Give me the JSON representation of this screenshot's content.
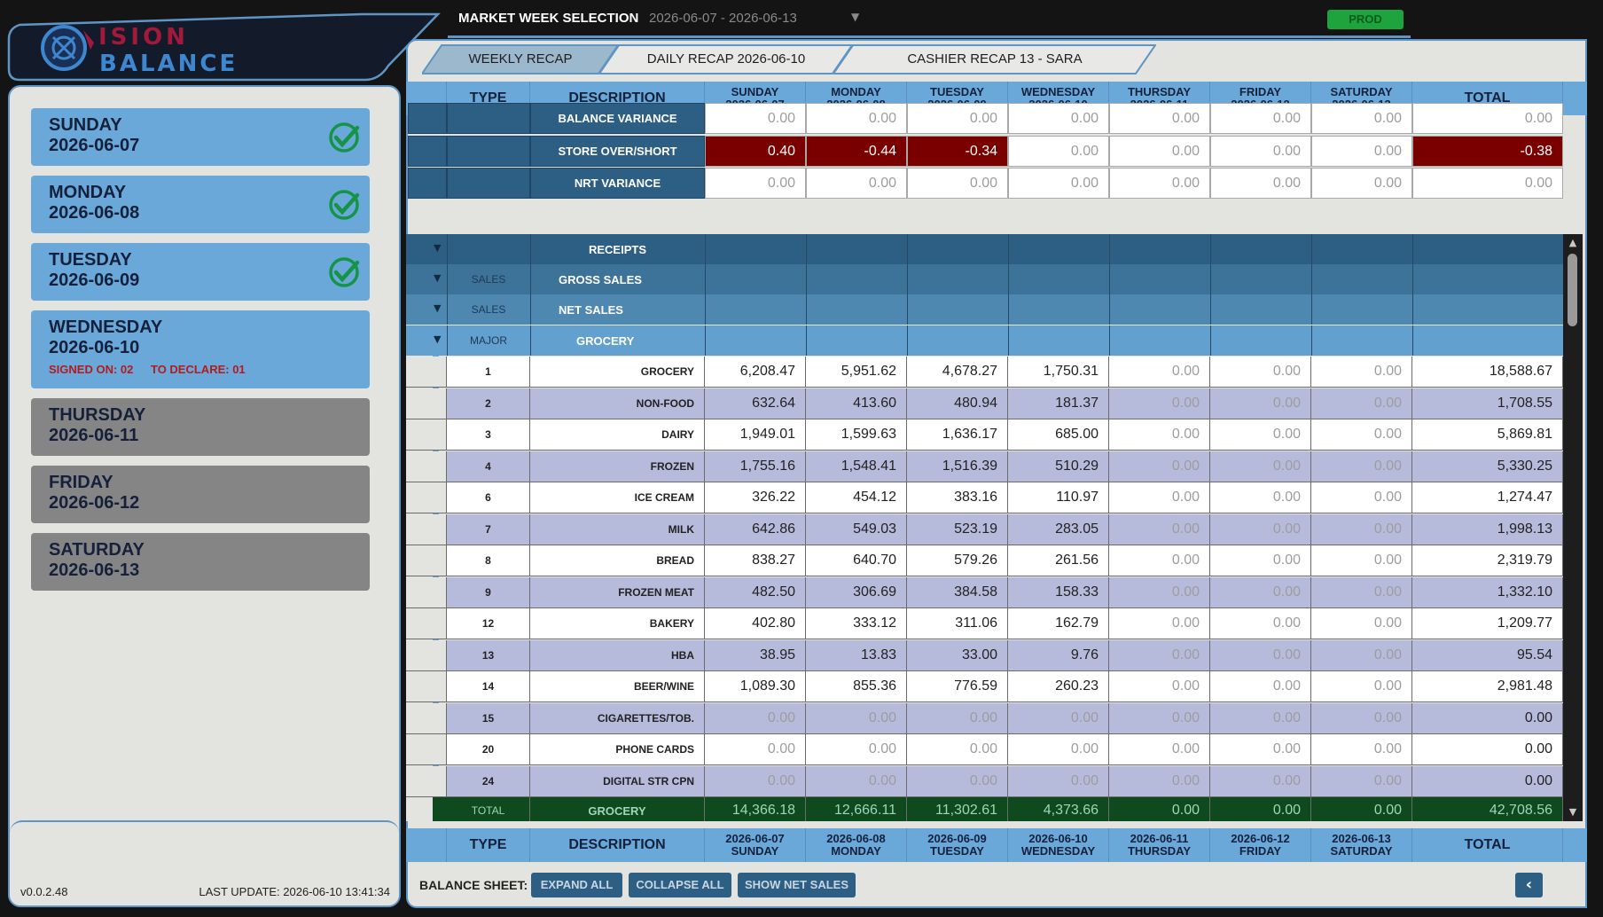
{
  "logo": {
    "line1": "ISION",
    "line2": "BALANCE"
  },
  "topbar": {
    "week_label": "MARKET WEEK SELECTION",
    "week_value": "2026-06-07 - 2026-06-13",
    "env_badge": "PROD"
  },
  "tabs": [
    {
      "label": "WEEKLY RECAP"
    },
    {
      "label": "DAILY RECAP 2026-06-10"
    },
    {
      "label": "CASHIER RECAP 13 - SARA"
    }
  ],
  "sidebar": {
    "days": [
      {
        "name": "SUNDAY",
        "date": "2026-06-07",
        "status": "done"
      },
      {
        "name": "MONDAY",
        "date": "2026-06-08",
        "status": "done"
      },
      {
        "name": "TUESDAY",
        "date": "2026-06-09",
        "status": "done"
      },
      {
        "name": "WEDNESDAY",
        "date": "2026-06-10",
        "status": "current",
        "signed_on": "SIGNED ON: 02",
        "to_declare": "TO DECLARE: 01"
      },
      {
        "name": "THURSDAY",
        "date": "2026-06-11",
        "status": "future"
      },
      {
        "name": "FRIDAY",
        "date": "2026-06-12",
        "status": "future"
      },
      {
        "name": "SATURDAY",
        "date": "2026-06-13",
        "status": "future"
      }
    ],
    "version": "v0.0.2.48",
    "last_update": "LAST UPDATE: 2026-06-10 13:41:34"
  },
  "header": {
    "type": "TYPE",
    "description": "DESCRIPTION",
    "days": [
      {
        "name": "SUNDAY",
        "date": "2026-06-07"
      },
      {
        "name": "MONDAY",
        "date": "2026-06-08"
      },
      {
        "name": "TUESDAY",
        "date": "2026-06-09"
      },
      {
        "name": "WEDNESDAY",
        "date": "2026-06-10"
      },
      {
        "name": "THURSDAY",
        "date": "2026-06-11"
      },
      {
        "name": "FRIDAY",
        "date": "2026-06-12"
      },
      {
        "name": "SATURDAY",
        "date": "2026-06-13"
      }
    ],
    "total": "TOTAL"
  },
  "variance_rows": [
    {
      "label": "BALANCE VARIANCE",
      "values": [
        "0.00",
        "0.00",
        "0.00",
        "0.00",
        "0.00",
        "0.00",
        "0.00"
      ],
      "total": "0.00"
    },
    {
      "label": "STORE OVER/SHORT",
      "values": [
        "0.40",
        "-0.44",
        "-0.34",
        "0.00",
        "0.00",
        "0.00",
        "0.00"
      ],
      "total": "-0.38"
    },
    {
      "label": "NRT VARIANCE",
      "values": [
        "0.00",
        "0.00",
        "0.00",
        "0.00",
        "0.00",
        "0.00",
        "0.00"
      ],
      "total": "0.00"
    }
  ],
  "group_rows": [
    {
      "type": "",
      "description": "RECEIPTS"
    },
    {
      "type": "SALES",
      "description": "GROSS SALES"
    },
    {
      "type": "SALES",
      "description": "NET SALES"
    },
    {
      "type": "MAJOR",
      "description": "GROCERY"
    }
  ],
  "data_rows": [
    {
      "code": "1",
      "desc": "GROCERY",
      "values": [
        "6,208.47",
        "5,951.62",
        "4,678.27",
        "1,750.31",
        "0.00",
        "0.00",
        "0.00"
      ],
      "total": "18,588.67"
    },
    {
      "code": "2",
      "desc": "NON-FOOD",
      "values": [
        "632.64",
        "413.60",
        "480.94",
        "181.37",
        "0.00",
        "0.00",
        "0.00"
      ],
      "total": "1,708.55"
    },
    {
      "code": "3",
      "desc": "DAIRY",
      "values": [
        "1,949.01",
        "1,599.63",
        "1,636.17",
        "685.00",
        "0.00",
        "0.00",
        "0.00"
      ],
      "total": "5,869.81"
    },
    {
      "code": "4",
      "desc": "FROZEN",
      "values": [
        "1,755.16",
        "1,548.41",
        "1,516.39",
        "510.29",
        "0.00",
        "0.00",
        "0.00"
      ],
      "total": "5,330.25"
    },
    {
      "code": "6",
      "desc": "ICE CREAM",
      "values": [
        "326.22",
        "454.12",
        "383.16",
        "110.97",
        "0.00",
        "0.00",
        "0.00"
      ],
      "total": "1,274.47"
    },
    {
      "code": "7",
      "desc": "MILK",
      "values": [
        "642.86",
        "549.03",
        "523.19",
        "283.05",
        "0.00",
        "0.00",
        "0.00"
      ],
      "total": "1,998.13"
    },
    {
      "code": "8",
      "desc": "BREAD",
      "values": [
        "838.27",
        "640.70",
        "579.26",
        "261.56",
        "0.00",
        "0.00",
        "0.00"
      ],
      "total": "2,319.79"
    },
    {
      "code": "9",
      "desc": "FROZEN MEAT",
      "values": [
        "482.50",
        "306.69",
        "384.58",
        "158.33",
        "0.00",
        "0.00",
        "0.00"
      ],
      "total": "1,332.10"
    },
    {
      "code": "12",
      "desc": "BAKERY",
      "values": [
        "402.80",
        "333.12",
        "311.06",
        "162.79",
        "0.00",
        "0.00",
        "0.00"
      ],
      "total": "1,209.77"
    },
    {
      "code": "13",
      "desc": "HBA",
      "values": [
        "38.95",
        "13.83",
        "33.00",
        "9.76",
        "0.00",
        "0.00",
        "0.00"
      ],
      "total": "95.54"
    },
    {
      "code": "14",
      "desc": "BEER/WINE",
      "values": [
        "1,089.30",
        "855.36",
        "776.59",
        "260.23",
        "0.00",
        "0.00",
        "0.00"
      ],
      "total": "2,981.48"
    },
    {
      "code": "15",
      "desc": "CIGARETTES/TOB.",
      "values": [
        "0.00",
        "0.00",
        "0.00",
        "0.00",
        "0.00",
        "0.00",
        "0.00"
      ],
      "total": "0.00"
    },
    {
      "code": "20",
      "desc": "PHONE CARDS",
      "values": [
        "0.00",
        "0.00",
        "0.00",
        "0.00",
        "0.00",
        "0.00",
        "0.00"
      ],
      "total": "0.00"
    },
    {
      "code": "24",
      "desc": "DIGITAL STR CPN",
      "values": [
        "0.00",
        "0.00",
        "0.00",
        "0.00",
        "0.00",
        "0.00",
        "0.00"
      ],
      "total": "0.00"
    }
  ],
  "total_row": {
    "type": "TOTAL",
    "desc": "GROCERY",
    "values": [
      "14,366.18",
      "12,666.11",
      "11,302.61",
      "4,373.66",
      "0.00",
      "0.00",
      "0.00"
    ],
    "total": "42,708.56"
  },
  "footer": {
    "label": "BALANCE SHEET:",
    "buttons": [
      "EXPAND ALL",
      "COLLAPSE ALL",
      "SHOW NET SALES"
    ]
  },
  "colors": {
    "accent": "#6aa8da",
    "dark": "#2d5f84",
    "negative": "#7a0000",
    "total_row": "#0f4a1e",
    "prod": "#1ea43c"
  }
}
